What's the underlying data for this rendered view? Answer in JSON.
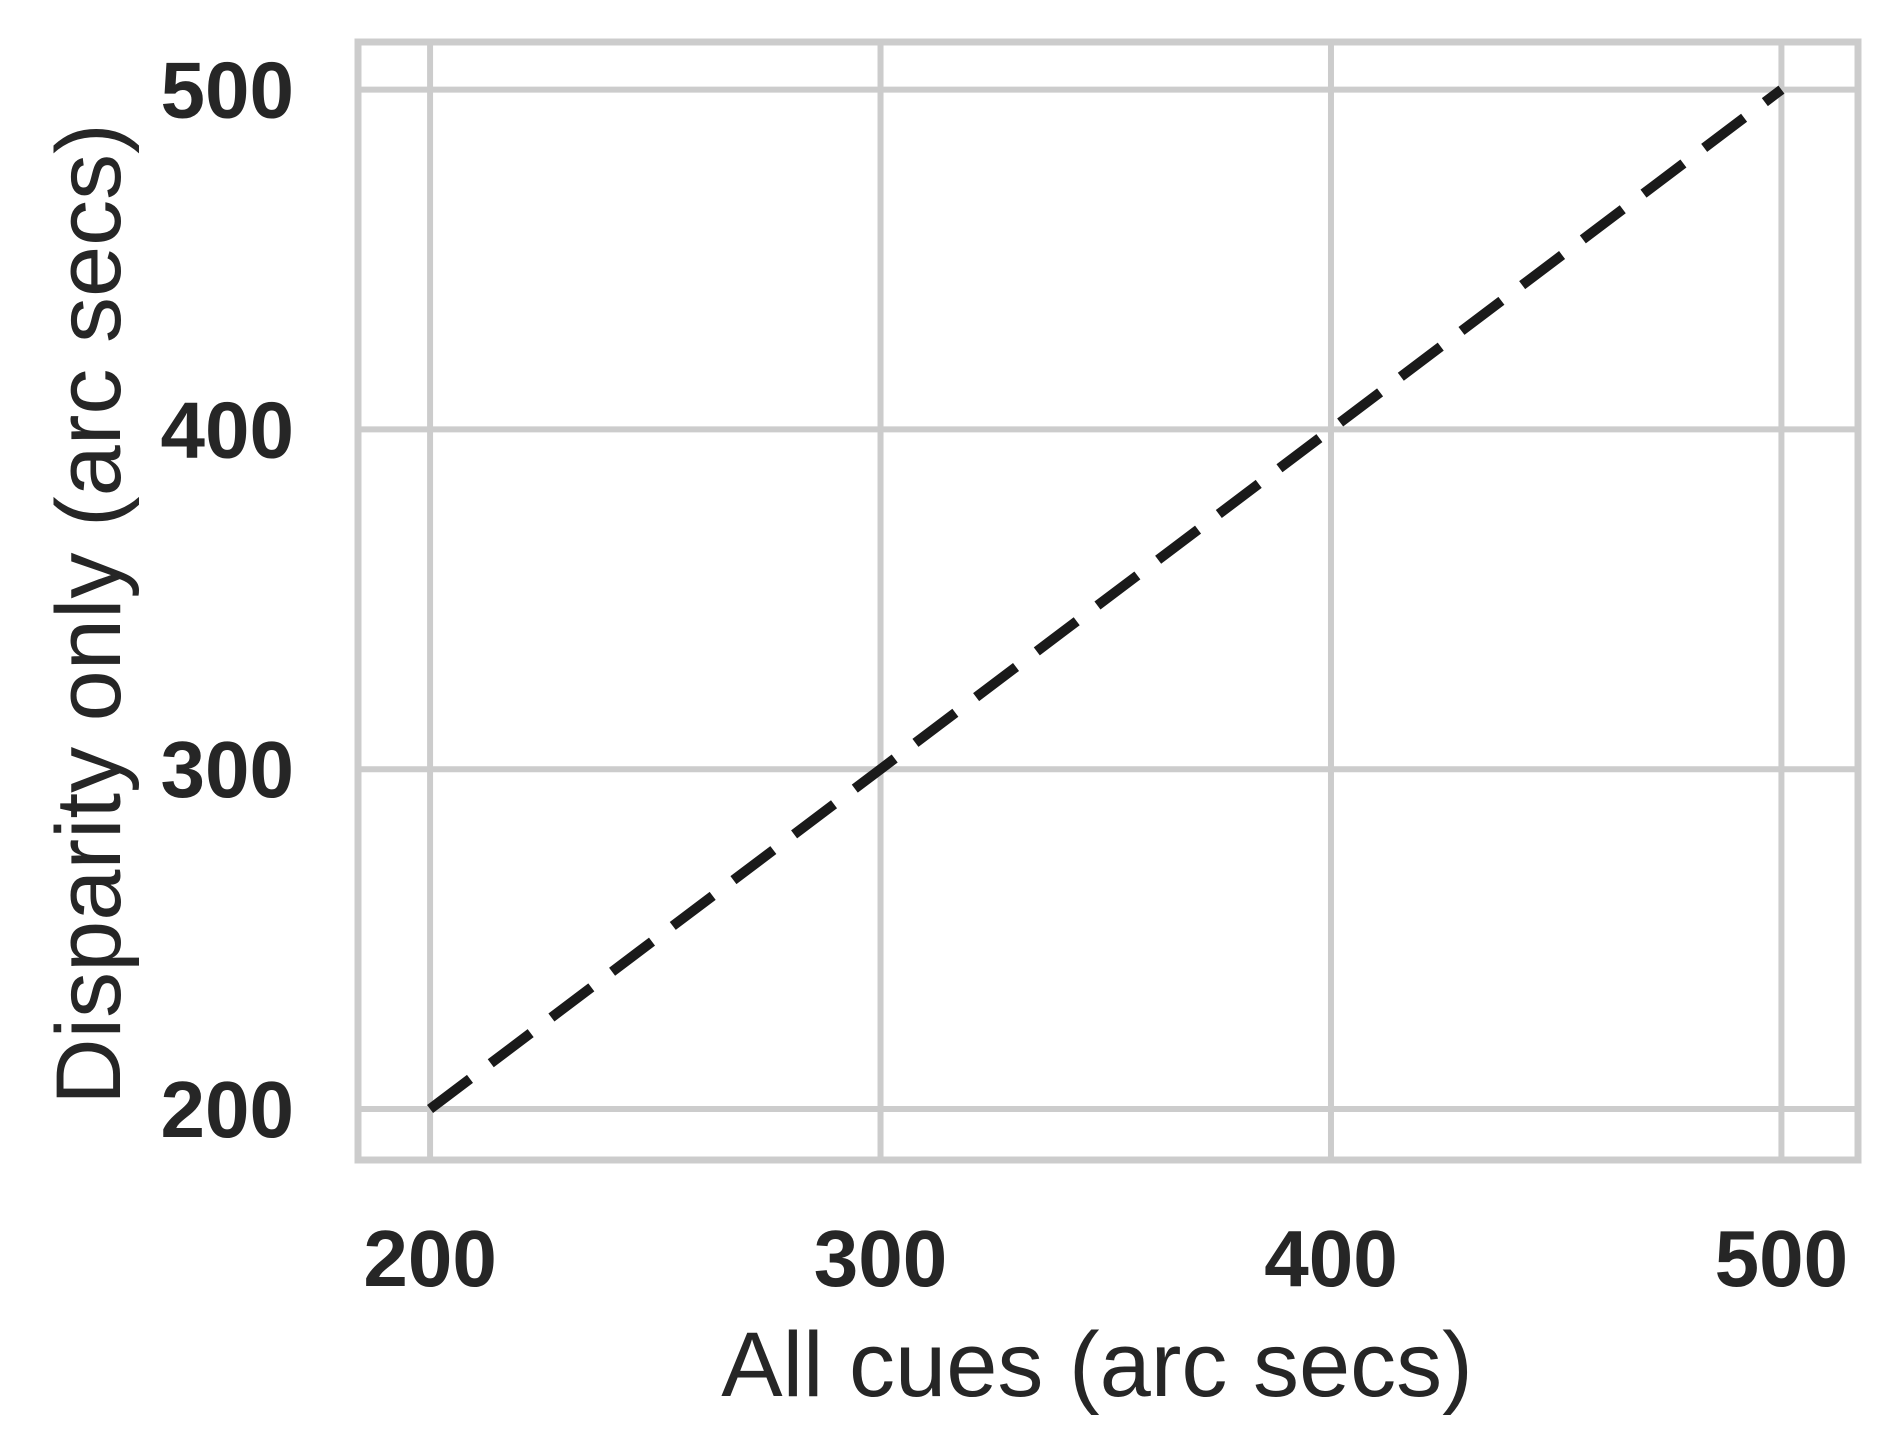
{
  "chart_data": {
    "type": "line",
    "title": "",
    "xlabel": "All cues (arc secs)",
    "ylabel": "Disparity only (arc secs)",
    "xlim": [
      184,
      517
    ],
    "ylim": [
      185,
      514
    ],
    "xticks": [
      200,
      300,
      400,
      500
    ],
    "yticks": [
      200,
      300,
      400,
      500
    ],
    "xtick_labels": [
      "200",
      "300",
      "400",
      "500"
    ],
    "ytick_labels": [
      "200",
      "300",
      "400",
      "500"
    ],
    "grid": true,
    "legend": "none",
    "series": [
      {
        "style": "dashed",
        "color": "#1a1a1a",
        "x": [
          200,
          500
        ],
        "y": [
          200,
          500
        ]
      }
    ],
    "colors": {
      "grid": "#cccccc",
      "frame": "#cccccc",
      "text": "#262626",
      "background": "#ffffff"
    }
  }
}
